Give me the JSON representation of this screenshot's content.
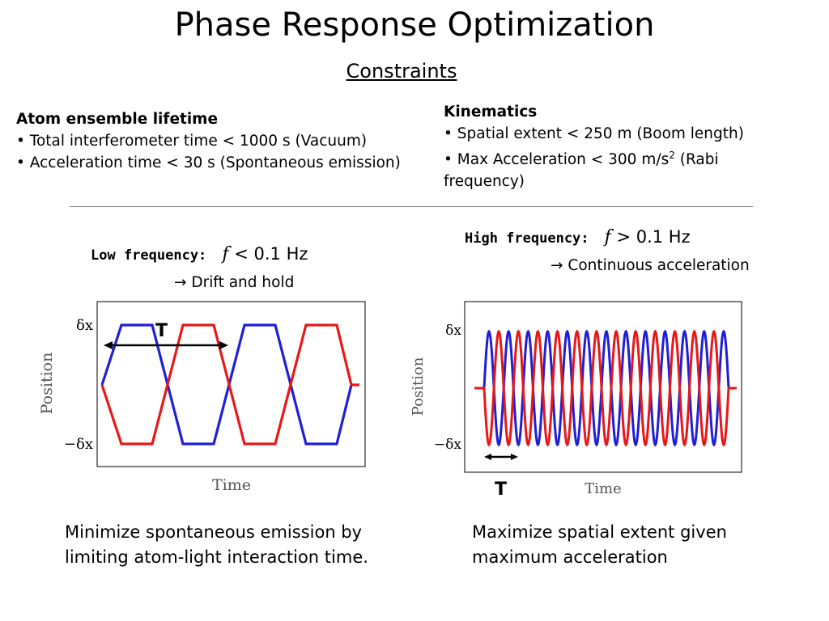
{
  "title": "Phase Response Optimization",
  "subtitle": "Constraints",
  "atom": {
    "heading": "Atom ensemble lifetime",
    "bullet1": "• Total interferometer time < 1000 s (Vacuum)",
    "bullet2": "• Acceleration time < 30 s (Spontaneous emission)"
  },
  "kinematics": {
    "heading": "Kinematics",
    "bullet1": "• Spatial extent < 250 m (Boom length)",
    "bullet2_pre": "• Max Acceleration < 300 m/s",
    "bullet2_sup": "2",
    "bullet2_post": " (Rabi",
    "bullet2_cont": "frequency)"
  },
  "low": {
    "label": "Low frequency:",
    "f": "f",
    "cond": " < 0.1 Hz",
    "arrow": "→",
    "note": " Drift and hold"
  },
  "high": {
    "label": "High frequency:",
    "f": "f",
    "cond": " > 0.1 Hz",
    "arrow": "→",
    "note": " Continuous acceleration"
  },
  "plot_left": {
    "ylabel": "Position",
    "xlabel": "Time",
    "ytick_top": "δx",
    "ytick_bottom": "−δx",
    "period_label": "T"
  },
  "plot_right": {
    "ylabel": "Position",
    "xlabel": "Time",
    "ytick_top": "δx",
    "ytick_bottom": "−δx",
    "period_label": "T"
  },
  "caption_left": "Minimize spontaneous emission by limiting atom-light interaction time.",
  "caption_right": "Maximize spatial extent given maximum acceleration",
  "colors": {
    "series_a": "#1f1fd6",
    "series_b": "#e81818"
  }
}
